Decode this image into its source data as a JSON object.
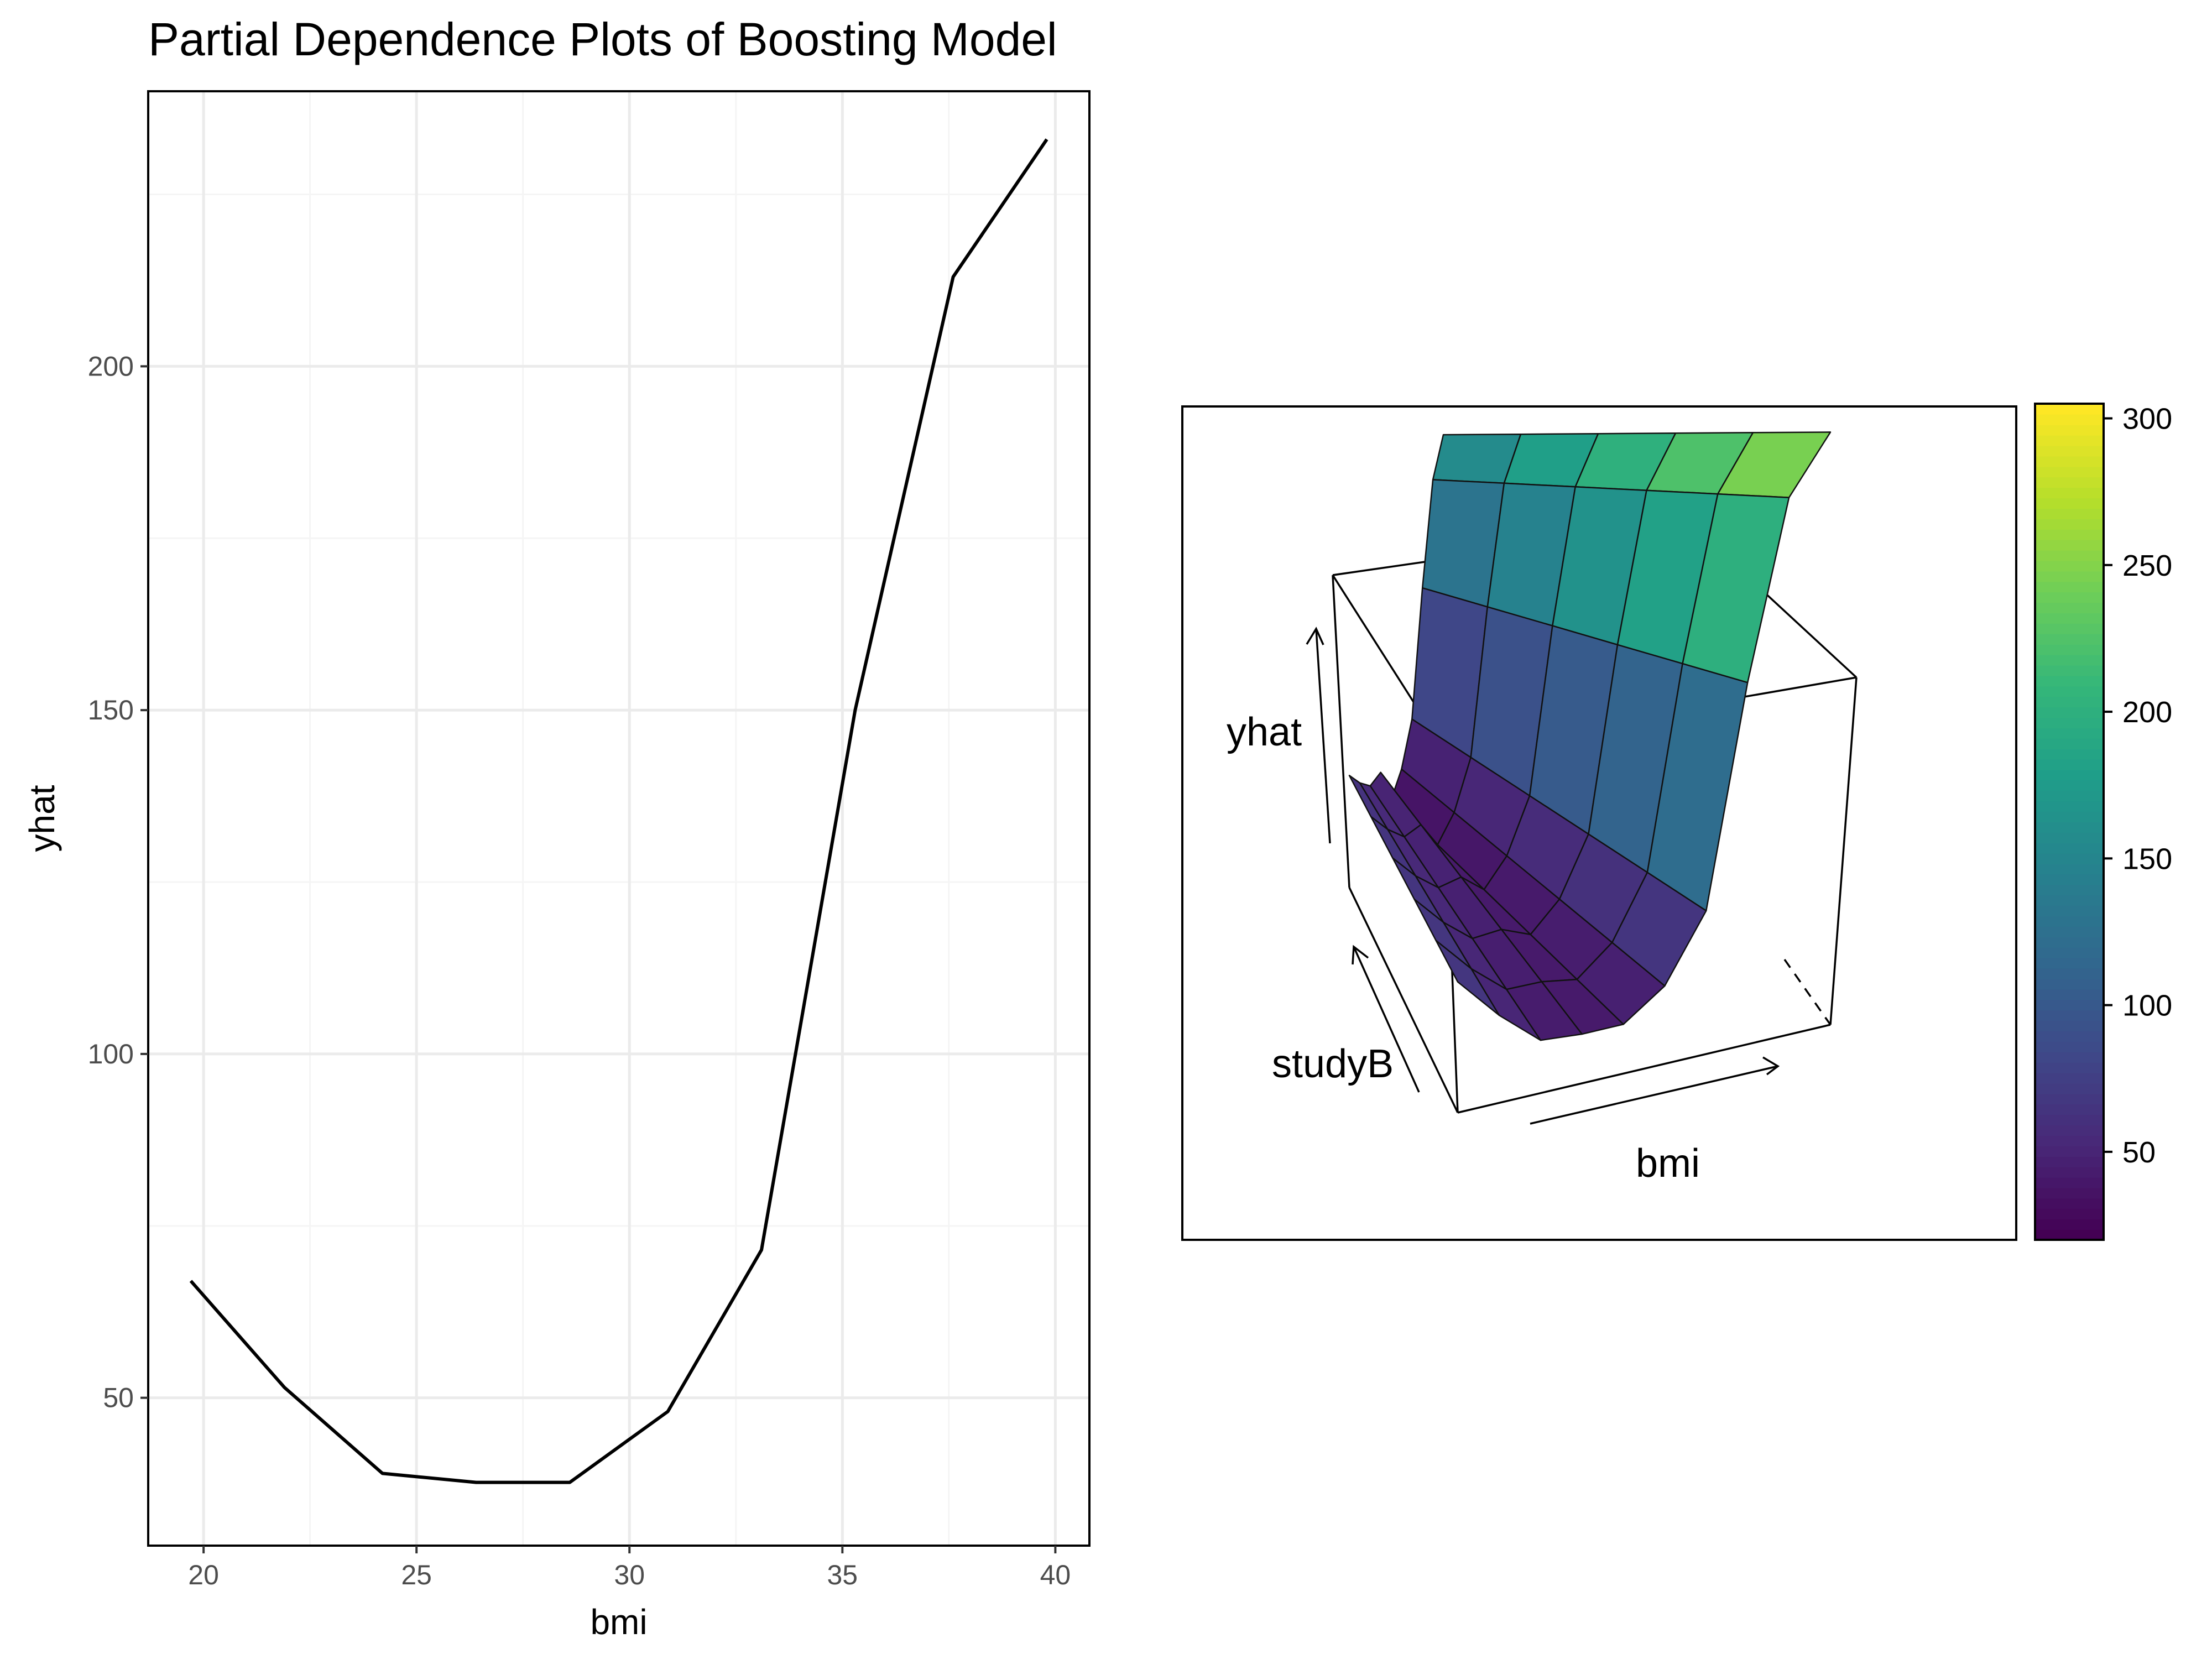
{
  "title": "Partial Dependence Plots of Boosting Model",
  "chart_data": [
    {
      "type": "line",
      "xlabel": "bmi",
      "ylabel": "yhat",
      "xlim": [
        18.7,
        40.8
      ],
      "ylim": [
        28.5,
        240
      ],
      "xticks": [
        20,
        25,
        30,
        35,
        40
      ],
      "yticks": [
        50,
        100,
        150,
        200
      ],
      "grid": true,
      "x": [
        19.7,
        21.9,
        24.2,
        26.4,
        28.6,
        30.9,
        33.1,
        35.3,
        37.6,
        39.8
      ],
      "y": [
        67,
        51.5,
        39,
        37.7,
        37.7,
        48,
        71.5,
        150,
        213,
        233
      ]
    },
    {
      "type": "surface",
      "xlabel": "bmi",
      "ylabel": "studyB",
      "zlabel": "yhat",
      "colorbar": {
        "ticks": [
          50,
          100,
          150,
          200,
          250,
          300
        ],
        "range": [
          20,
          305
        ],
        "palette": "viridis"
      }
    }
  ],
  "colors": {
    "line": "#000000",
    "grid_major": "#ebebeb",
    "grid_minor": "#f5f5f5",
    "viridis": [
      "#440154",
      "#482878",
      "#3e4989",
      "#31688e",
      "#26828e",
      "#1f9e89",
      "#35b779",
      "#6ece58",
      "#b5de2b",
      "#fde725"
    ]
  }
}
